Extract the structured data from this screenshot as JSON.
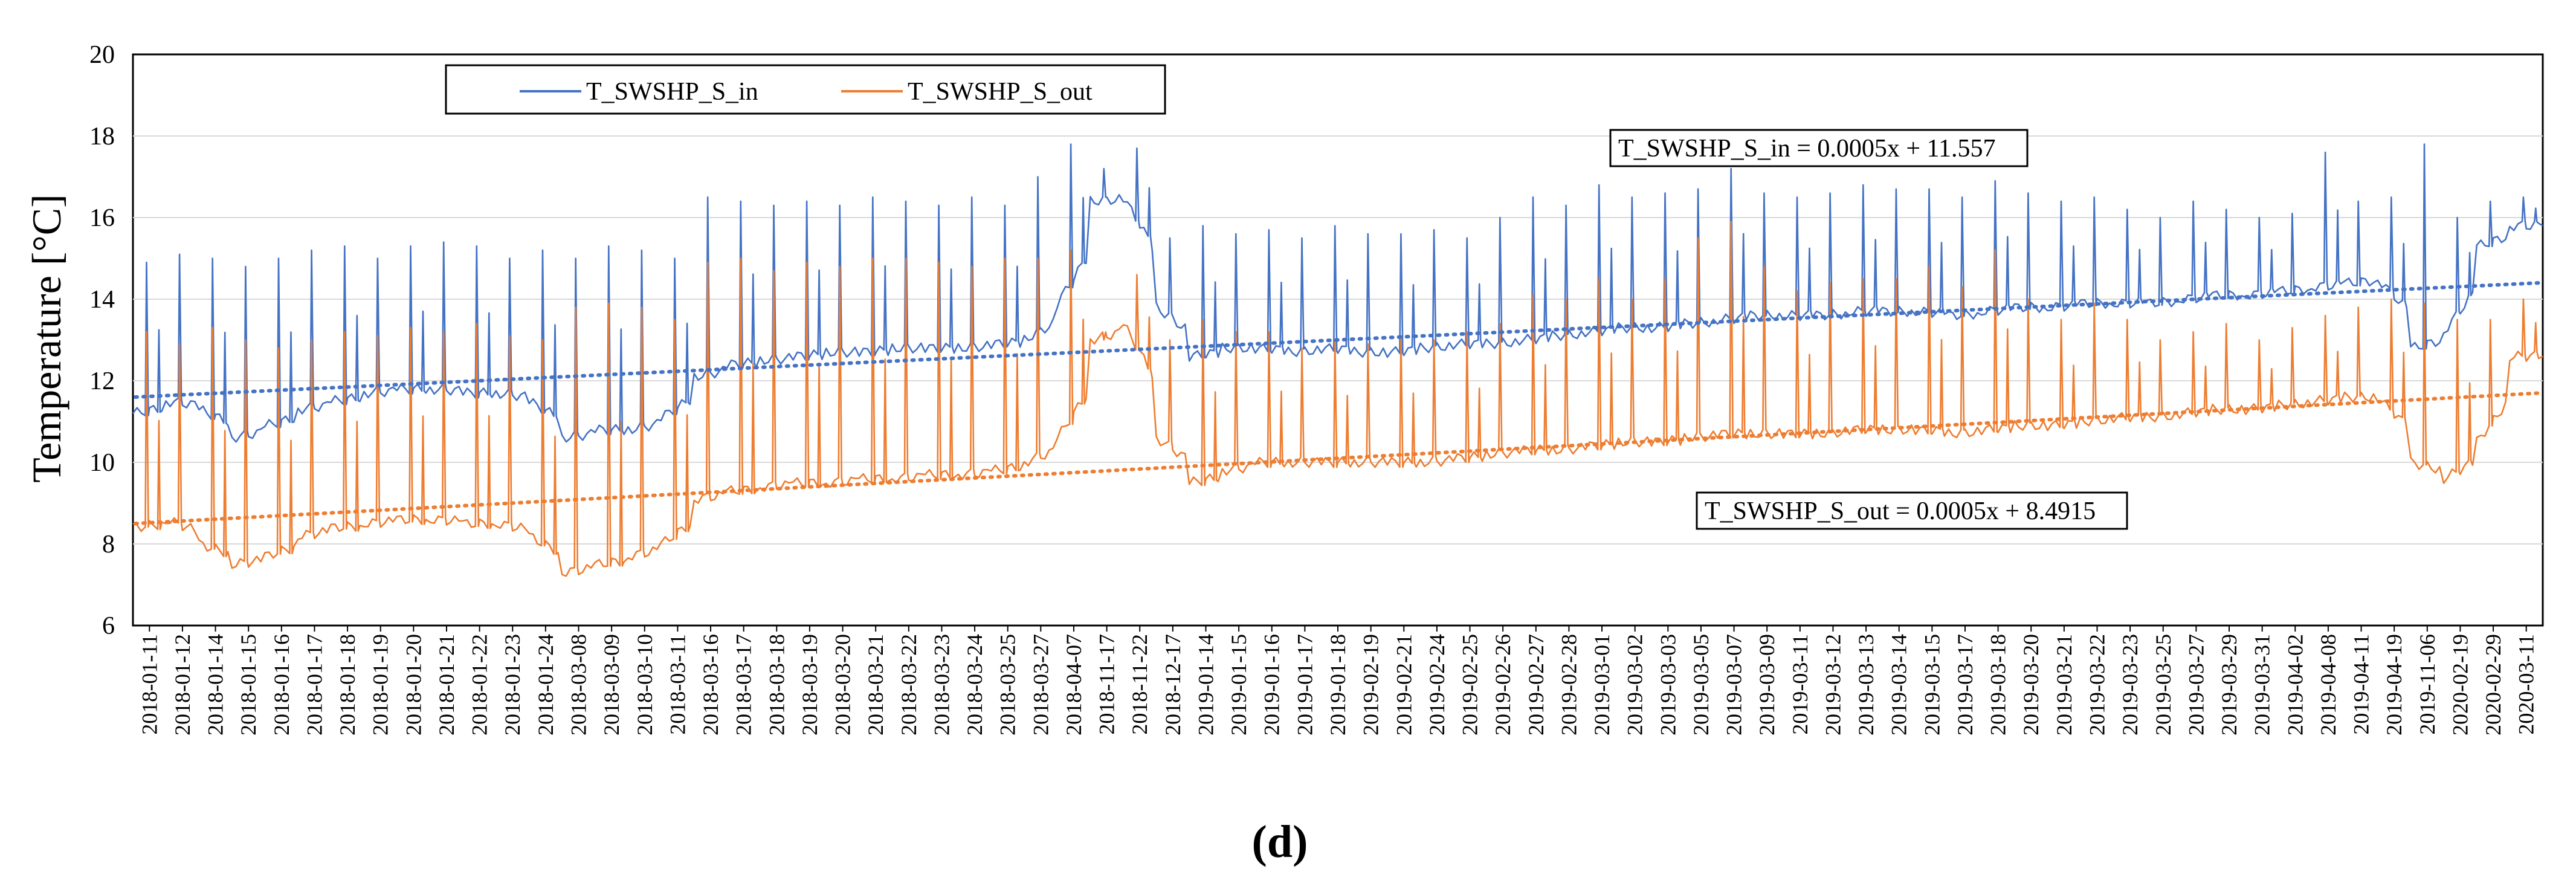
{
  "chart_data": {
    "type": "line",
    "panel_label": "(d)",
    "ylabel": "Temperature [°C]",
    "xlabel": "",
    "ylim": [
      6,
      20
    ],
    "yticks": [
      6,
      8,
      10,
      12,
      14,
      16,
      18,
      20
    ],
    "grid": true,
    "legend_position": "top-left",
    "categories": [
      "2018-01-11",
      "2018-01-12",
      "2018-01-14",
      "2018-01-15",
      "2018-01-16",
      "2018-01-17",
      "2018-01-18",
      "2018-01-19",
      "2018-01-20",
      "2018-01-21",
      "2018-01-22",
      "2018-01-23",
      "2018-01-24",
      "2018-03-08",
      "2018-03-09",
      "2018-03-10",
      "2018-03-11",
      "2018-03-16",
      "2018-03-17",
      "2018-03-18",
      "2018-03-19",
      "2018-03-20",
      "2018-03-21",
      "2018-03-22",
      "2018-03-23",
      "2018-03-24",
      "2018-03-25",
      "2018-03-27",
      "2018-04-07",
      "2018-11-17",
      "2018-11-22",
      "2018-12-17",
      "2019-01-14",
      "2019-01-15",
      "2019-01-16",
      "2019-01-17",
      "2019-01-18",
      "2019-02-19",
      "2019-02-21",
      "2019-02-24",
      "2019-02-25",
      "2019-02-26",
      "2019-02-27",
      "2019-02-28",
      "2019-03-01",
      "2019-03-02",
      "2019-03-03",
      "2019-03-05",
      "2019-03-07",
      "2019-03-09",
      "2019-03-11",
      "2019-03-12",
      "2019-03-13",
      "2019-03-14",
      "2019-03-15",
      "2019-03-17",
      "2019-03-18",
      "2019-03-20",
      "2019-03-21",
      "2019-03-22",
      "2019-03-23",
      "2019-03-25",
      "2019-03-27",
      "2019-03-29",
      "2019-03-31",
      "2019-04-02",
      "2019-04-08",
      "2019-04-11",
      "2019-04-19",
      "2019-11-06",
      "2020-02-19",
      "2020-02-29",
      "2020-03-11"
    ],
    "series": [
      {
        "name": "T_SWSHP_S_in",
        "color": "#4472C4",
        "baseline": [
          11.2,
          11.5,
          11.3,
          10.6,
          10.9,
          11.3,
          11.5,
          11.7,
          11.8,
          11.8,
          11.7,
          11.7,
          11.5,
          10.6,
          10.8,
          10.8,
          11.1,
          12.1,
          12.4,
          12.5,
          12.6,
          12.7,
          12.7,
          12.8,
          12.8,
          12.8,
          12.9,
          13.0,
          13.9,
          16.4,
          16.5,
          13.8,
          12.6,
          12.8,
          12.8,
          12.7,
          12.8,
          12.7,
          12.7,
          12.8,
          12.9,
          12.9,
          13.0,
          13.1,
          13.2,
          13.3,
          13.3,
          13.4,
          13.5,
          13.6,
          13.6,
          13.6,
          13.7,
          13.7,
          13.7,
          13.6,
          13.7,
          13.8,
          13.8,
          13.9,
          13.9,
          13.9,
          14.0,
          14.1,
          14.1,
          14.2,
          14.3,
          14.4,
          14.5,
          12.8,
          13.2,
          15.3,
          15.8
        ],
        "spikes": [
          14.9,
          15.1,
          15.0,
          14.8,
          15.0,
          15.2,
          15.3,
          15.0,
          15.3,
          15.4,
          15.3,
          15.0,
          15.2,
          15.0,
          15.3,
          15.2,
          15.0,
          16.5,
          16.4,
          16.3,
          16.4,
          16.3,
          16.5,
          16.4,
          16.3,
          16.5,
          16.3,
          17.0,
          17.8,
          17.2,
          17.7,
          15.5,
          15.8,
          15.6,
          15.7,
          15.5,
          15.8,
          15.6,
          15.6,
          15.7,
          15.5,
          16.0,
          16.5,
          16.3,
          16.8,
          16.5,
          16.6,
          16.7,
          17.2,
          16.6,
          16.5,
          16.6,
          16.8,
          16.7,
          16.7,
          16.5,
          16.9,
          16.6,
          16.4,
          16.5,
          16.2,
          16.0,
          16.4,
          16.2,
          16.0,
          16.1,
          17.6,
          16.4,
          16.5,
          17.8,
          16.0,
          16.4,
          16.5
        ],
        "trendline": {
          "slope": 0.0005,
          "intercept": 11.557,
          "start": 11.6,
          "end": 14.4,
          "equation": "T_SWSHP_S_in = 0.0005x + 11.557"
        }
      },
      {
        "name": "T_SWSHP_S_out",
        "color": "#ED7D31",
        "baseline": [
          8.4,
          8.6,
          8.0,
          7.5,
          7.7,
          8.2,
          8.4,
          8.5,
          8.6,
          8.6,
          8.5,
          8.5,
          8.2,
          7.3,
          7.5,
          7.7,
          8.0,
          9.1,
          9.3,
          9.4,
          9.5,
          9.5,
          9.6,
          9.6,
          9.7,
          9.7,
          9.8,
          10.0,
          10.6,
          13.0,
          13.4,
          10.6,
          9.5,
          9.8,
          10.0,
          10.0,
          10.0,
          10.0,
          10.0,
          10.0,
          10.1,
          10.2,
          10.3,
          10.3,
          10.4,
          10.5,
          10.5,
          10.6,
          10.7,
          10.7,
          10.7,
          10.7,
          10.8,
          10.8,
          10.8,
          10.7,
          10.8,
          10.9,
          10.9,
          11.0,
          11.1,
          11.1,
          11.2,
          11.3,
          11.3,
          11.4,
          11.5,
          11.6,
          11.6,
          10.0,
          9.6,
          10.5,
          12.6
        ],
        "spikes": [
          13.2,
          12.9,
          13.3,
          13.0,
          12.8,
          13.0,
          13.2,
          13.1,
          13.3,
          13.2,
          13.4,
          13.1,
          13.0,
          13.8,
          13.9,
          13.8,
          13.5,
          14.9,
          15.0,
          14.7,
          14.9,
          14.8,
          15.0,
          15.0,
          14.9,
          14.8,
          15.0,
          15.0,
          15.2,
          13.0,
          14.6,
          13.0,
          13.5,
          13.2,
          13.2,
          12.8,
          13.0,
          12.9,
          13.1,
          13.0,
          13.2,
          13.4,
          14.1,
          14.0,
          14.5,
          14.0,
          14.5,
          15.5,
          15.9,
          14.8,
          14.2,
          14.4,
          14.5,
          14.5,
          14.8,
          14.3,
          15.2,
          14.0,
          13.5,
          13.9,
          13.5,
          13.0,
          13.2,
          13.4,
          13.0,
          13.3,
          13.6,
          13.8,
          14.0,
          13.9,
          13.5,
          13.5,
          14.0
        ],
        "trendline": {
          "slope": 0.0005,
          "intercept": 8.4915,
          "start": 8.5,
          "end": 11.7,
          "equation": "T_SWSHP_S_out = 0.0005x + 8.4915"
        }
      }
    ]
  }
}
